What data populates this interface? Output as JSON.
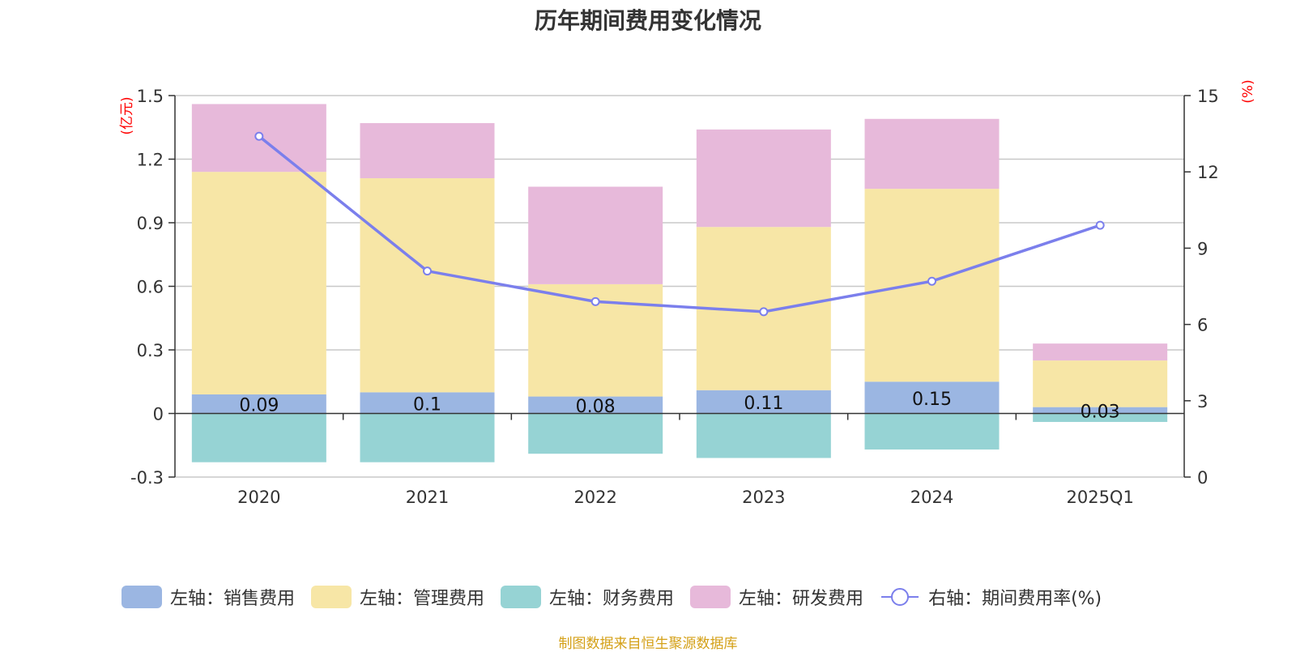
{
  "chart_data": {
    "type": "bar",
    "title": "历年期间费用变化情况",
    "categories": [
      "2020",
      "2021",
      "2022",
      "2023",
      "2024",
      "2025Q1"
    ],
    "left_axis": {
      "unit": "(亿元)",
      "ylim": [
        -0.3,
        1.5
      ],
      "ticks": [
        "1.5",
        "1.2",
        "0.9",
        "0.6",
        "0.3",
        "0",
        "-0.3"
      ]
    },
    "right_axis": {
      "unit": "(%)",
      "ylim": [
        0,
        15
      ],
      "ticks": [
        "15",
        "12",
        "9",
        "6",
        "3",
        "0"
      ]
    },
    "series": [
      {
        "name": "左轴：销售费用",
        "color": "#9bb6e2",
        "values": [
          0.09,
          0.1,
          0.08,
          0.11,
          0.15,
          0.03
        ],
        "labels": [
          "0.09",
          "0.1",
          "0.08",
          "0.11",
          "0.15",
          "0.03"
        ]
      },
      {
        "name": "左轴：管理费用",
        "color": "#f7e6a6",
        "values": [
          1.05,
          1.01,
          0.53,
          0.77,
          0.91,
          0.22
        ]
      },
      {
        "name": "左轴：财务费用",
        "color": "#96d3d4",
        "values": [
          -0.23,
          -0.23,
          -0.19,
          -0.21,
          -0.17,
          -0.04
        ]
      },
      {
        "name": "左轴：研发费用",
        "color": "#e7b9da",
        "values": [
          0.32,
          0.26,
          0.46,
          0.46,
          0.33,
          0.08
        ]
      }
    ],
    "line": {
      "name": "右轴：期间费用率(%)",
      "color": "#7b7fec",
      "values": [
        13.4,
        8.1,
        6.9,
        6.5,
        7.7,
        9.9
      ]
    }
  },
  "source": "制图数据来自恒生聚源数据库"
}
